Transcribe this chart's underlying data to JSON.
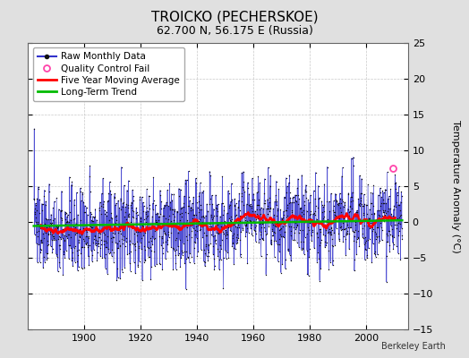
{
  "title": "TROICKO (PECHERSKOE)",
  "subtitle": "62.700 N, 56.175 E (Russia)",
  "ylabel": "Temperature Anomaly (°C)",
  "attribution": "Berkeley Earth",
  "ylim": [
    -15,
    25
  ],
  "yticks": [
    -15,
    -10,
    -5,
    0,
    5,
    10,
    15,
    20,
    25
  ],
  "xlim": [
    1880,
    2015
  ],
  "xticks": [
    1900,
    1920,
    1940,
    1960,
    1980,
    2000
  ],
  "start_year": 1882,
  "end_year": 2013,
  "background_color": "#e0e0e0",
  "plot_bg_color": "#ffffff",
  "raw_line_color": "#3333cc",
  "raw_marker_color": "#111111",
  "moving_avg_color": "#ff0000",
  "trend_color": "#00bb00",
  "qc_fail_color": "#ff44aa",
  "seed": 137,
  "noise_std": 3.2,
  "seasonal_amp": 0.0,
  "trend_slope": 0.006,
  "trend_intercept": -0.15,
  "qc_fail_x": 2009.5,
  "qc_fail_y": 7.5,
  "title_fontsize": 11,
  "subtitle_fontsize": 9,
  "tick_labelsize": 8,
  "ylabel_fontsize": 8,
  "legend_fontsize": 7.5,
  "attribution_fontsize": 7
}
